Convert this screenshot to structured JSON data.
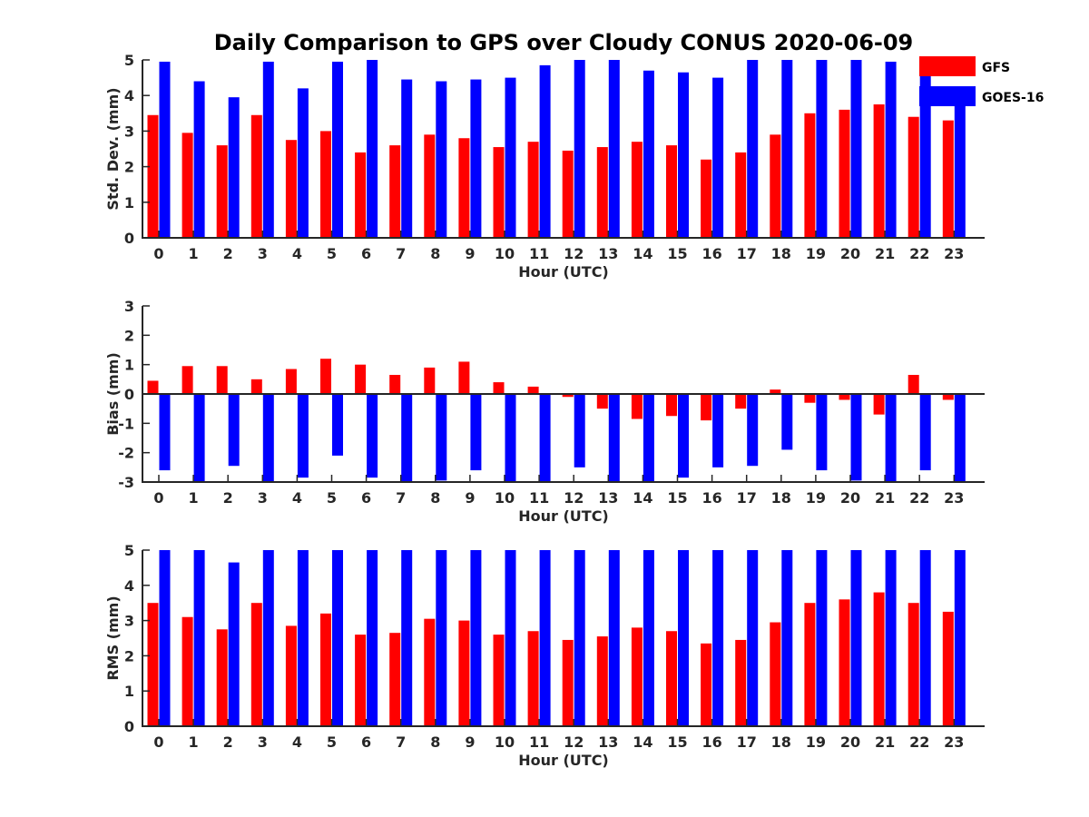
{
  "title": "Daily Comparison to GPS over Cloudy CONUS 2020-06-09",
  "colors": {
    "GFS": "#ff0000",
    "GOES-16": "#0000ff",
    "axis": "#262626"
  },
  "legend": {
    "placement": "top-right",
    "entries": [
      "GFS",
      "GOES-16"
    ]
  },
  "chart_data": [
    {
      "type": "bar",
      "ylabel": "Std. Dev. (mm)",
      "xlabel": "Hour (UTC)",
      "ylim": [
        0,
        5
      ],
      "yticks": [
        0,
        1,
        2,
        3,
        4,
        5
      ],
      "categories": [
        "0",
        "1",
        "2",
        "3",
        "4",
        "5",
        "6",
        "7",
        "8",
        "9",
        "10",
        "11",
        "12",
        "13",
        "14",
        "15",
        "16",
        "17",
        "18",
        "19",
        "20",
        "21",
        "22",
        "23"
      ],
      "series": [
        {
          "name": "GFS",
          "values": [
            3.45,
            2.95,
            2.6,
            3.45,
            2.75,
            3.0,
            2.4,
            2.6,
            2.9,
            2.8,
            2.55,
            2.7,
            2.45,
            2.55,
            2.7,
            2.6,
            2.2,
            2.4,
            2.9,
            3.5,
            3.6,
            3.75,
            3.4,
            3.3
          ]
        },
        {
          "name": "GOES-16",
          "values": [
            4.95,
            4.4,
            3.95,
            4.95,
            4.2,
            4.95,
            5.0,
            4.45,
            4.4,
            4.45,
            4.5,
            4.85,
            5.0,
            5.0,
            4.7,
            4.65,
            4.5,
            5.0,
            5.0,
            5.0,
            5.0,
            4.95,
            4.55,
            4.0
          ]
        }
      ]
    },
    {
      "type": "bar",
      "ylabel": "Bias (mm)",
      "xlabel": "Hour (UTC)",
      "ylim": [
        -3,
        3
      ],
      "yticks": [
        -3,
        -2,
        -1,
        0,
        1,
        2,
        3
      ],
      "zero_line": true,
      "categories": [
        "0",
        "1",
        "2",
        "3",
        "4",
        "5",
        "6",
        "7",
        "8",
        "9",
        "10",
        "11",
        "12",
        "13",
        "14",
        "15",
        "16",
        "17",
        "18",
        "19",
        "20",
        "21",
        "22",
        "23"
      ],
      "series": [
        {
          "name": "GFS",
          "values": [
            0.45,
            0.95,
            0.95,
            0.5,
            0.85,
            1.2,
            1.0,
            0.65,
            0.9,
            1.1,
            0.4,
            0.25,
            -0.1,
            -0.5,
            -0.85,
            -0.75,
            -0.9,
            -0.5,
            0.15,
            -0.3,
            -0.2,
            -0.7,
            0.65,
            -0.2
          ]
        },
        {
          "name": "GOES-16",
          "values": [
            -2.6,
            -3.0,
            -2.45,
            -3.0,
            -2.85,
            -2.1,
            -2.85,
            -3.0,
            -2.95,
            -2.6,
            -3.0,
            -3.0,
            -2.5,
            -3.0,
            -3.0,
            -2.85,
            -2.5,
            -2.45,
            -1.9,
            -2.6,
            -2.95,
            -3.0,
            -2.6,
            -3.0
          ]
        }
      ]
    },
    {
      "type": "bar",
      "ylabel": "RMS (mm)",
      "xlabel": "Hour (UTC)",
      "ylim": [
        0,
        5
      ],
      "yticks": [
        0,
        1,
        2,
        3,
        4,
        5
      ],
      "categories": [
        "0",
        "1",
        "2",
        "3",
        "4",
        "5",
        "6",
        "7",
        "8",
        "9",
        "10",
        "11",
        "12",
        "13",
        "14",
        "15",
        "16",
        "17",
        "18",
        "19",
        "20",
        "21",
        "22",
        "23"
      ],
      "series": [
        {
          "name": "GFS",
          "values": [
            3.5,
            3.1,
            2.75,
            3.5,
            2.85,
            3.2,
            2.6,
            2.65,
            3.05,
            3.0,
            2.6,
            2.7,
            2.45,
            2.55,
            2.8,
            2.7,
            2.35,
            2.45,
            2.95,
            3.5,
            3.6,
            3.8,
            3.5,
            3.25
          ]
        },
        {
          "name": "GOES-16",
          "values": [
            5.0,
            5.0,
            4.65,
            5.0,
            5.0,
            5.0,
            5.0,
            5.0,
            5.0,
            5.0,
            5.0,
            5.0,
            5.0,
            5.0,
            5.0,
            5.0,
            5.0,
            5.0,
            5.0,
            5.0,
            5.0,
            5.0,
            5.0,
            5.0
          ]
        }
      ]
    }
  ]
}
